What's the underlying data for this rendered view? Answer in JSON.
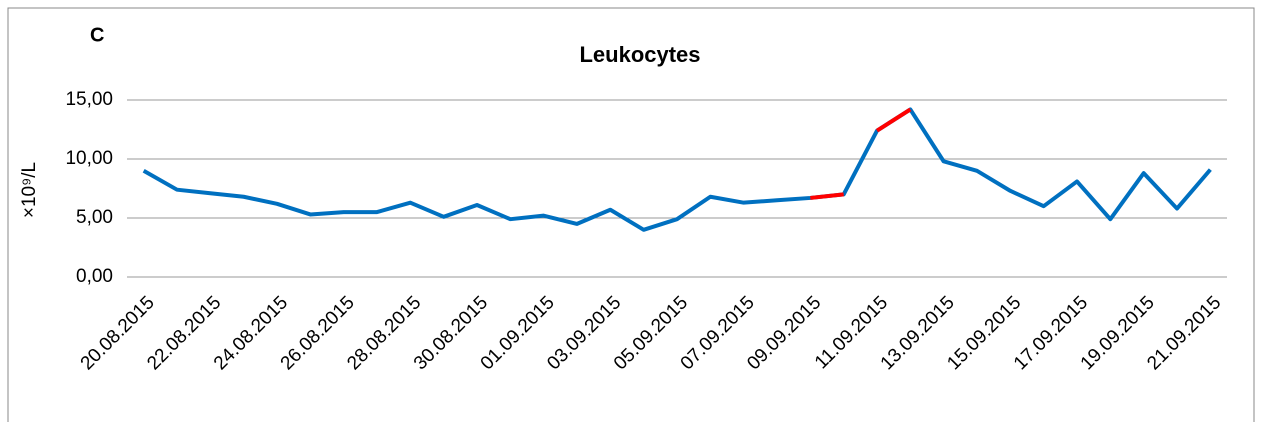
{
  "chart_data": {
    "type": "line",
    "panel_label": "C",
    "title": "Leukocytes",
    "y_label": "×10⁹/L",
    "categories": [
      "20.08.2015",
      null,
      "22.08.2015",
      null,
      "24.08.2015",
      null,
      "26.08.2015",
      null,
      "28.08.2015",
      null,
      "30.08.2015",
      null,
      "01.09.2015",
      null,
      "03.09.2015",
      null,
      "05.09.2015",
      null,
      "07.09.2015",
      null,
      "09.09.2015",
      null,
      "11.09.2015",
      null,
      "13.09.2015",
      null,
      "15.09.2015",
      null,
      "17.09.2015",
      null,
      "19.09.2015",
      null,
      "21.09.2015"
    ],
    "series": [
      {
        "name": "Leukocytes",
        "color": "#0070c0",
        "highlight_color": "#ff0000",
        "highlight_segments": [
          20,
          22
        ],
        "values": [
          9.0,
          7.4,
          7.1,
          6.8,
          6.2,
          5.3,
          5.5,
          5.5,
          6.3,
          5.1,
          6.1,
          4.9,
          5.2,
          4.5,
          5.7,
          4.0,
          4.9,
          6.8,
          6.3,
          6.5,
          6.7,
          7.0,
          12.4,
          14.2,
          9.8,
          9.0,
          7.3,
          6.0,
          8.1,
          4.9,
          8.8,
          5.8,
          9.1
        ]
      }
    ],
    "ylim": [
      0,
      15
    ],
    "yticks": [
      {
        "value": 0,
        "label": "0,00"
      },
      {
        "value": 5,
        "label": "5,00"
      },
      {
        "value": 10,
        "label": "10,00"
      },
      {
        "value": 15,
        "label": "15,00"
      }
    ],
    "grid": true
  }
}
